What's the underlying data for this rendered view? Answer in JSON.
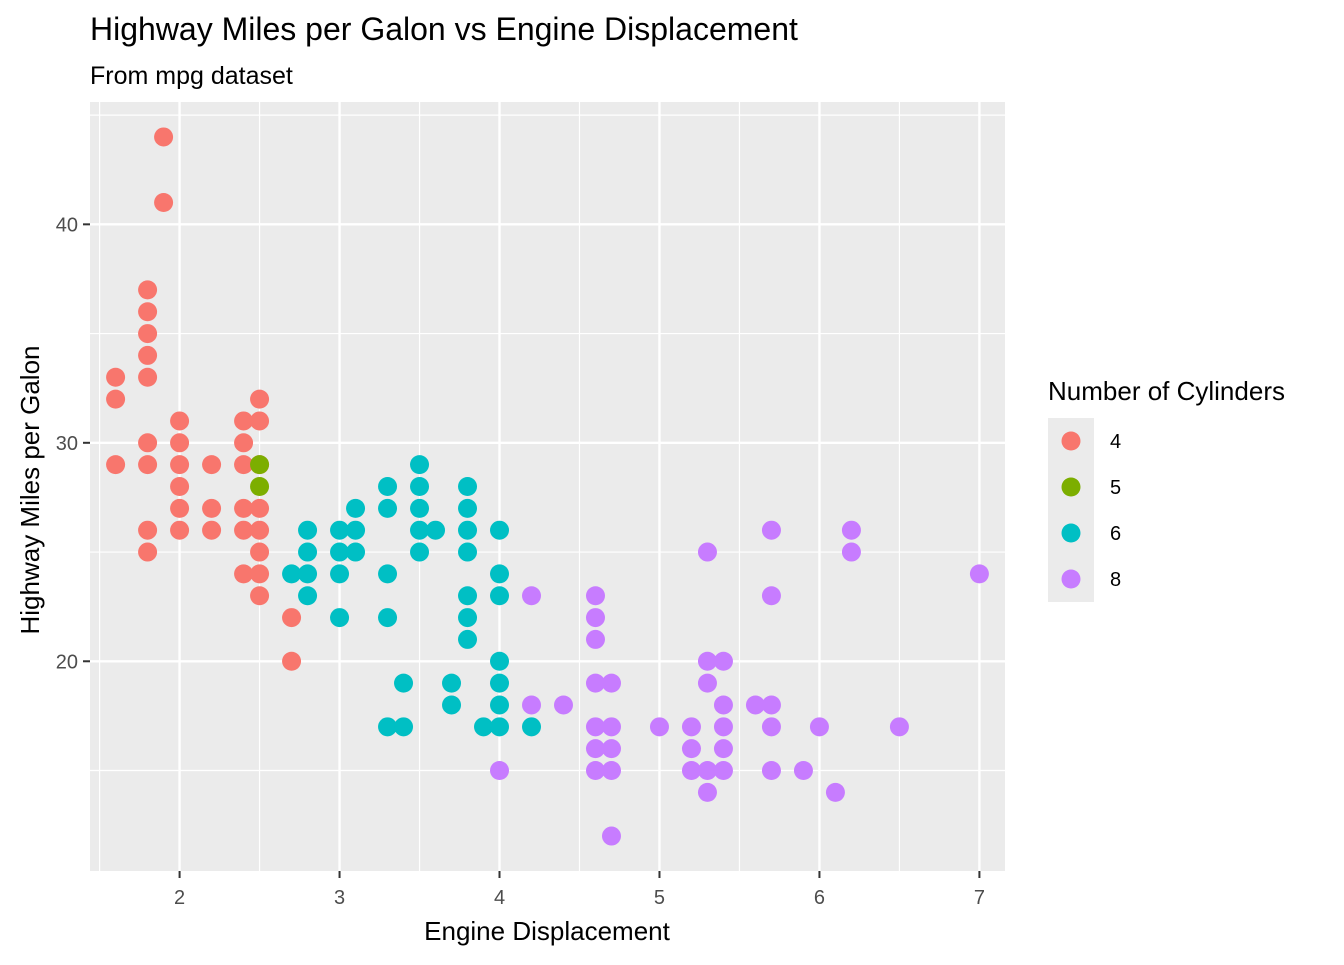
{
  "chart_data": {
    "type": "scatter",
    "title": "Highway Miles per Galon vs Engine Displacement",
    "subtitle": "From mpg dataset",
    "xlabel": "Engine Displacement",
    "ylabel": "Highway Miles per Galon",
    "xlim": [
      1.44,
      7.16
    ],
    "ylim": [
      10.4,
      45.6
    ],
    "x_ticks": [
      2,
      3,
      4,
      5,
      6,
      7
    ],
    "y_ticks": [
      20,
      30,
      40
    ],
    "grid": true,
    "legend": {
      "title": "Number of Cylinders",
      "position": "right"
    },
    "series": [
      {
        "name": "4",
        "color": "#F8766D",
        "points": [
          [
            1.9,
            44
          ],
          [
            1.9,
            41
          ],
          [
            1.8,
            37
          ],
          [
            1.8,
            36
          ],
          [
            1.8,
            35
          ],
          [
            1.8,
            34
          ],
          [
            1.8,
            33
          ],
          [
            1.6,
            33
          ],
          [
            1.6,
            32
          ],
          [
            1.6,
            29
          ],
          [
            1.8,
            30
          ],
          [
            1.8,
            29
          ],
          [
            1.8,
            26
          ],
          [
            1.8,
            25
          ],
          [
            2.0,
            31
          ],
          [
            2.0,
            30
          ],
          [
            2.0,
            29
          ],
          [
            2.0,
            28
          ],
          [
            2.0,
            27
          ],
          [
            2.0,
            26
          ],
          [
            2.2,
            29
          ],
          [
            2.2,
            27
          ],
          [
            2.2,
            26
          ],
          [
            2.4,
            31
          ],
          [
            2.4,
            30
          ],
          [
            2.4,
            29
          ],
          [
            2.4,
            27
          ],
          [
            2.4,
            26
          ],
          [
            2.4,
            24
          ],
          [
            2.5,
            32
          ],
          [
            2.5,
            31
          ],
          [
            2.5,
            29
          ],
          [
            2.5,
            27
          ],
          [
            2.5,
            26
          ],
          [
            2.5,
            25
          ],
          [
            2.5,
            24
          ],
          [
            2.5,
            23
          ],
          [
            2.7,
            22
          ],
          [
            2.7,
            20
          ]
        ]
      },
      {
        "name": "5",
        "color": "#7CAE00",
        "points": [
          [
            2.5,
            29
          ],
          [
            2.5,
            28
          ]
        ]
      },
      {
        "name": "6",
        "color": "#00BFC4",
        "points": [
          [
            2.7,
            24
          ],
          [
            2.8,
            26
          ],
          [
            2.8,
            25
          ],
          [
            2.8,
            24
          ],
          [
            2.8,
            23
          ],
          [
            3.0,
            26
          ],
          [
            3.0,
            25
          ],
          [
            3.0,
            24
          ],
          [
            3.0,
            22
          ],
          [
            3.1,
            27
          ],
          [
            3.1,
            26
          ],
          [
            3.1,
            25
          ],
          [
            3.3,
            28
          ],
          [
            3.3,
            27
          ],
          [
            3.3,
            24
          ],
          [
            3.3,
            22
          ],
          [
            3.3,
            17
          ],
          [
            3.4,
            19
          ],
          [
            3.4,
            17
          ],
          [
            3.5,
            29
          ],
          [
            3.5,
            28
          ],
          [
            3.5,
            27
          ],
          [
            3.5,
            26
          ],
          [
            3.5,
            25
          ],
          [
            3.6,
            26
          ],
          [
            3.7,
            19
          ],
          [
            3.7,
            18
          ],
          [
            3.8,
            28
          ],
          [
            3.8,
            27
          ],
          [
            3.8,
            26
          ],
          [
            3.8,
            25
          ],
          [
            3.8,
            23
          ],
          [
            3.8,
            22
          ],
          [
            3.8,
            21
          ],
          [
            3.9,
            17
          ],
          [
            4.0,
            26
          ],
          [
            4.0,
            24
          ],
          [
            4.0,
            23
          ],
          [
            4.0,
            20
          ],
          [
            4.0,
            19
          ],
          [
            4.0,
            18
          ],
          [
            4.0,
            17
          ],
          [
            4.2,
            17
          ]
        ]
      },
      {
        "name": "8",
        "color": "#C77CFF",
        "points": [
          [
            4.0,
            15
          ],
          [
            4.2,
            23
          ],
          [
            4.2,
            18
          ],
          [
            4.4,
            18
          ],
          [
            4.6,
            23
          ],
          [
            4.6,
            22
          ],
          [
            4.6,
            21
          ],
          [
            4.6,
            19
          ],
          [
            4.6,
            17
          ],
          [
            4.6,
            16
          ],
          [
            4.6,
            15
          ],
          [
            4.7,
            19
          ],
          [
            4.7,
            17
          ],
          [
            4.7,
            16
          ],
          [
            4.7,
            15
          ],
          [
            4.7,
            12
          ],
          [
            5.0,
            17
          ],
          [
            5.2,
            17
          ],
          [
            5.2,
            16
          ],
          [
            5.2,
            15
          ],
          [
            5.3,
            25
          ],
          [
            5.3,
            20
          ],
          [
            5.3,
            19
          ],
          [
            5.3,
            15
          ],
          [
            5.3,
            14
          ],
          [
            5.4,
            20
          ],
          [
            5.4,
            18
          ],
          [
            5.4,
            17
          ],
          [
            5.4,
            16
          ],
          [
            5.4,
            15
          ],
          [
            5.6,
            18
          ],
          [
            5.7,
            26
          ],
          [
            5.7,
            23
          ],
          [
            5.7,
            18
          ],
          [
            5.7,
            17
          ],
          [
            5.7,
            15
          ],
          [
            5.9,
            15
          ],
          [
            6.0,
            17
          ],
          [
            6.1,
            14
          ],
          [
            6.2,
            26
          ],
          [
            6.2,
            25
          ],
          [
            6.5,
            17
          ],
          [
            7.0,
            24
          ]
        ]
      }
    ]
  }
}
